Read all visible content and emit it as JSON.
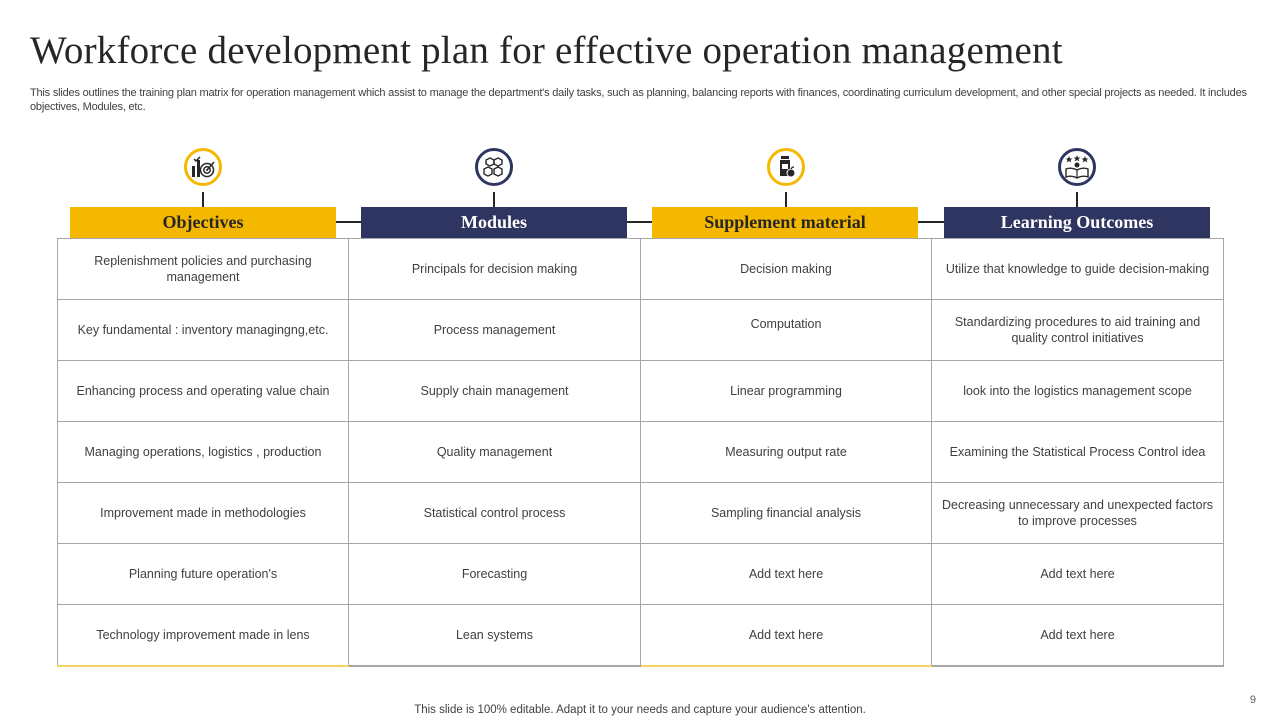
{
  "slide": {
    "title": "Workforce development plan for effective operation management",
    "subtitle": "This slides outlines the training plan matrix for operation management which assist to manage the department's daily tasks, such as planning, balancing reports with finances, coordinating curriculum development, and other special projects as needed. It includes objectives, Modules, etc.",
    "footer": "This slide is 100% editable. Adapt it to your needs and capture your audience's attention.",
    "page_number": "9"
  },
  "colors": {
    "gold": "#f5b800",
    "navy": "#2e3561"
  },
  "columns": [
    {
      "header": "Objectives",
      "icon": "target-chart-icon",
      "color": "gold"
    },
    {
      "header": "Modules",
      "icon": "cubes-icon",
      "color": "navy"
    },
    {
      "header": "Supplement material",
      "icon": "bottle-apple-icon",
      "color": "gold"
    },
    {
      "header": "Learning Outcomes",
      "icon": "book-person-stars-icon",
      "color": "navy"
    }
  ],
  "rows": [
    [
      "Replenishment  policies and purchasing management",
      "Principals for decision making",
      "Decision making",
      "Utilize that knowledge  to guide decision-making"
    ],
    [
      "Key fundamental  : inventory  managingng,etc.",
      "Process management",
      "Computation",
      "Standardizing procedures  to aid training and quality control initiatives"
    ],
    [
      "Enhancing process and operating value chain",
      "Supply chain management",
      "Linear programming",
      "look into the logistics management  scope"
    ],
    [
      "Managing operations, logistics , production",
      "Quality management",
      "Measuring output rate",
      "Examining the Statistical Process Control idea"
    ],
    [
      "Improvement  made in methodologies",
      "Statistical control process",
      "Sampling financial analysis",
      "Decreasing  unnecessary and unexpected factors to improve  processes"
    ],
    [
      "Planning future operation's",
      "Forecasting",
      "Add text here",
      "Add text here"
    ],
    [
      "Technology improvement  made in lens",
      "Lean systems",
      "Add text here",
      "Add text here"
    ]
  ]
}
